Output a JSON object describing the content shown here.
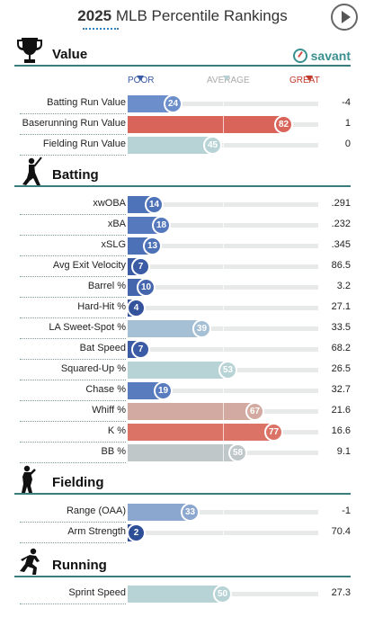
{
  "header": {
    "year": "2025",
    "title": "MLB Percentile Rankings",
    "play_icon": "play-circle-icon"
  },
  "brand": {
    "name": "savant",
    "color": "#3a8f8f"
  },
  "scale": {
    "poor": "POOR",
    "average": "AVERAGE",
    "great": "GREAT"
  },
  "colors": {
    "poor": "#3b5ba5",
    "avg": "#b8cfd3",
    "great": "#d9534f",
    "section_rule": "#3a7d7d"
  },
  "sections": [
    {
      "title": "Value",
      "icon": "trophy-icon",
      "metrics": [
        {
          "label": "Batting Run Value",
          "percentile": 24,
          "value": "-4",
          "color": "#6c8fcb"
        },
        {
          "label": "Baserunning Run Value",
          "percentile": 82,
          "value": "1",
          "color": "#d9645a"
        },
        {
          "label": "Fielding Run Value",
          "percentile": 45,
          "value": "0",
          "color": "#b8d3d6"
        }
      ]
    },
    {
      "title": "Batting",
      "icon": "batter-icon",
      "metrics": [
        {
          "label": "xwOBA",
          "percentile": 14,
          "value": ".291",
          "color": "#4f73b8"
        },
        {
          "label": "xBA",
          "percentile": 18,
          "value": ".232",
          "color": "#5579bc"
        },
        {
          "label": "xSLG",
          "percentile": 13,
          "value": ".345",
          "color": "#4d71b6"
        },
        {
          "label": "Avg Exit Velocity",
          "percentile": 7,
          "value": "86.5",
          "color": "#3b5ba5"
        },
        {
          "label": "Barrel %",
          "percentile": 10,
          "value": "3.2",
          "color": "#4566ad"
        },
        {
          "label": "Hard-Hit %",
          "percentile": 4,
          "value": "27.1",
          "color": "#34539c"
        },
        {
          "label": "LA Sweet-Spot %",
          "percentile": 39,
          "value": "33.5",
          "color": "#a5bfd4"
        },
        {
          "label": "Bat Speed",
          "percentile": 7,
          "value": "68.2",
          "color": "#3b5ba5"
        },
        {
          "label": "Squared-Up %",
          "percentile": 53,
          "value": "26.5",
          "color": "#b8d3d6"
        },
        {
          "label": "Chase %",
          "percentile": 19,
          "value": "32.7",
          "color": "#587cbe"
        },
        {
          "label": "Whiff %",
          "percentile": 67,
          "value": "21.6",
          "color": "#d3aaa2"
        },
        {
          "label": "K %",
          "percentile": 77,
          "value": "16.6",
          "color": "#db7466"
        },
        {
          "label": "BB %",
          "percentile": 58,
          "value": "9.1",
          "color": "#bfc7c8"
        }
      ]
    },
    {
      "title": "Fielding",
      "icon": "fielder-icon",
      "metrics": [
        {
          "label": "Range (OAA)",
          "percentile": 33,
          "value": "-1",
          "color": "#8ba6cf"
        },
        {
          "label": "Arm Strength",
          "percentile": 2,
          "value": "70.4",
          "color": "#2f4e98"
        }
      ]
    },
    {
      "title": "Running",
      "icon": "runner-icon",
      "metrics": [
        {
          "label": "Sprint Speed",
          "percentile": 50,
          "value": "27.3",
          "color": "#b8d3d6"
        }
      ]
    }
  ]
}
